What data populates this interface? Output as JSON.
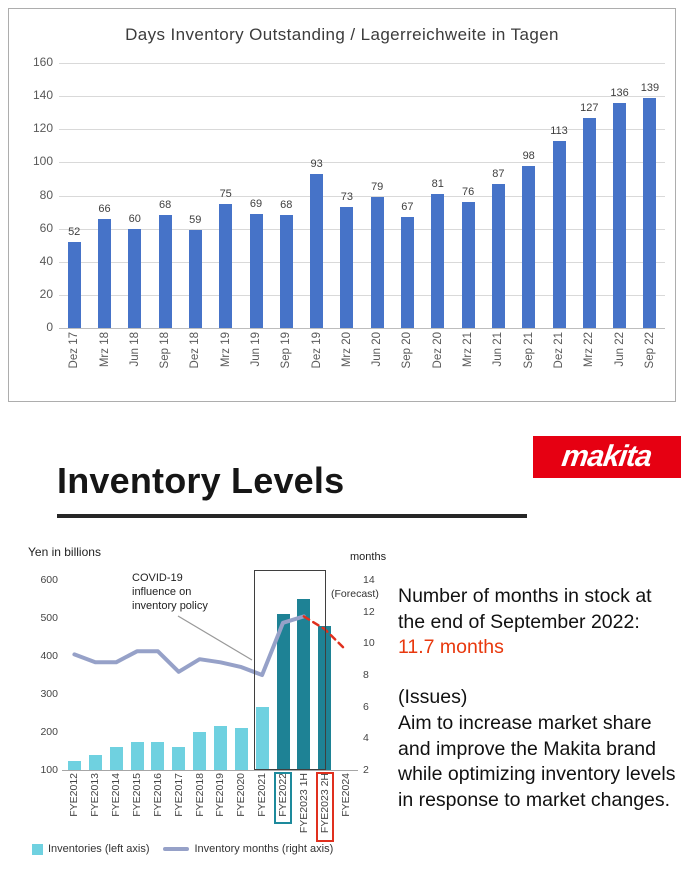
{
  "slide": {
    "title": "Inventory Levels",
    "logo_text": "makita"
  },
  "colors": {
    "makita_red": "#e60012",
    "highlight_red": "#e8380d",
    "days_bar_blue": "#4673c8",
    "inventory_bar_cyan": "#6fd1e0",
    "inventory_bar_teal": "#1e8295",
    "months_line_purple": "#96a1c8",
    "forecast_red": "#e0301e"
  },
  "chart_data": [
    {
      "type": "bar",
      "title": "Days Inventory Outstanding / Lagerreichweite in Tagen",
      "categories": [
        "Dez 17",
        "Mrz 18",
        "Jun 18",
        "Sep 18",
        "Dez 18",
        "Mrz 19",
        "Jun 19",
        "Sep 19",
        "Dez 19",
        "Mrz 20",
        "Jun 20",
        "Sep 20",
        "Dez 20",
        "Mrz 21",
        "Jun 21",
        "Sep 21",
        "Dez 21",
        "Mrz 22",
        "Jun 22",
        "Sep 22"
      ],
      "values": [
        52,
        66,
        60,
        68,
        59,
        75,
        69,
        68,
        93,
        73,
        79,
        67,
        81,
        76,
        87,
        98,
        113,
        127,
        136,
        139
      ],
      "ylim": [
        0,
        160
      ],
      "ytick_step": 20,
      "bar_color": "#4673c8",
      "grid": true,
      "legend": "none",
      "xlabel": "",
      "ylabel": ""
    },
    {
      "type": "combo-bar-line",
      "categories": [
        "FYE2012",
        "FYE2013",
        "FYE2014",
        "FYE2015",
        "FYE2016",
        "FYE2017",
        "FYE2018",
        "FYE2019",
        "FYE2020",
        "FYE2021",
        "FYE2022",
        "FYE2023 1H",
        "FYE2023 2H",
        "FYE2024"
      ],
      "left_axis": {
        "label": "Yen in billions",
        "min": 100,
        "max": 600,
        "step": 100
      },
      "right_axis": {
        "label": "months",
        "min": 2,
        "max": 14,
        "step": 2
      },
      "bars": {
        "name": "Inventories (left axis)",
        "color": "#6fd1e0",
        "dark_color": "#1e8295",
        "dark_from_index": 10,
        "values": [
          125,
          140,
          160,
          175,
          175,
          160,
          200,
          215,
          210,
          265,
          510,
          550,
          480,
          null
        ]
      },
      "line": {
        "name": "Inventory months (right axis)",
        "color": "#96a1c8",
        "forecast_color": "#e0301e",
        "forecast_from_index": 11,
        "values": [
          9.3,
          8.8,
          8.8,
          9.5,
          9.5,
          8.2,
          9.0,
          8.8,
          8.5,
          8.0,
          11.3,
          11.7,
          10.9,
          9.6
        ]
      },
      "annotations": {
        "covid": "COVID-19\ninfluence on\ninventory policy",
        "forecast": "(Forecast)",
        "highlight_box_categories": [
          "FYE2021",
          "FYE2022",
          "FYE2023 1H"
        ],
        "tick_boxes": [
          {
            "index": 10,
            "color": "#1d8a9c"
          },
          {
            "index": 12,
            "color": "#e0301e"
          }
        ]
      },
      "legend": [
        {
          "label": "Inventories (left axis)",
          "swatch": "#6fd1e0",
          "type": "square"
        },
        {
          "label": "Inventory months (right axis)",
          "swatch": "#96a1c8",
          "type": "line"
        }
      ]
    }
  ],
  "panel": {
    "line1": "Number of months in stock at the end of September 2022:",
    "highlight": "11.7 months",
    "issues_title": "(Issues)",
    "issues_body": "Aim to increase market share and improve the Makita brand while optimizing inventory levels in response to market changes."
  }
}
